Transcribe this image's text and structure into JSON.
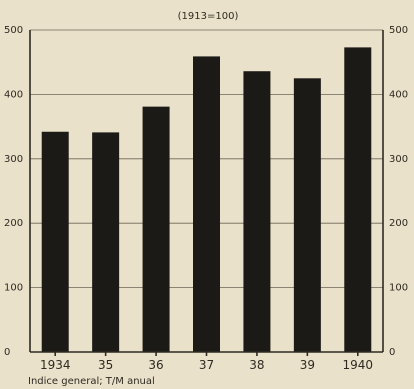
{
  "chart_data": {
    "type": "bar",
    "title": "(1913=100)",
    "caption": "Indice general; T/M anual",
    "categories": [
      "1934",
      "35",
      "36",
      "37",
      "38",
      "39",
      "1940"
    ],
    "values": [
      342,
      341,
      381,
      459,
      436,
      425,
      473
    ],
    "ylim": [
      0,
      500
    ],
    "yticks": [
      "0",
      "100",
      "200",
      "300",
      "400",
      "500"
    ],
    "grid": true,
    "bar_color": "#1c1a17",
    "background": "#e9e1c9"
  }
}
